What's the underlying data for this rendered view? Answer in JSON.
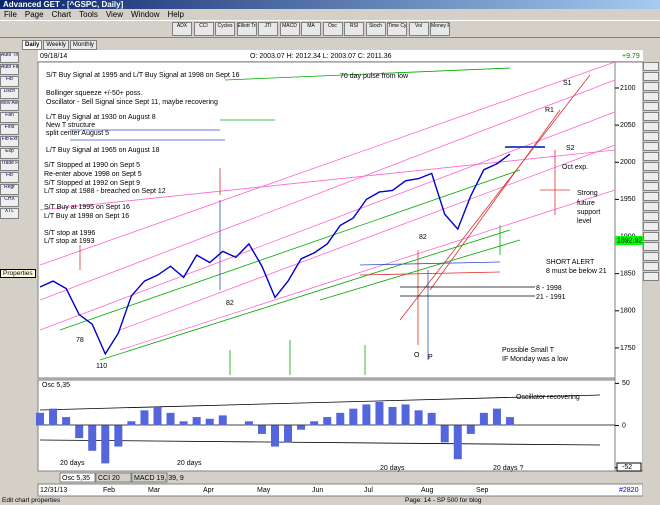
{
  "window": {
    "title": "Advanced GET - [^GSPC, Daily]",
    "menu": [
      "File",
      "Page",
      "Chart",
      "Tools",
      "View",
      "Window",
      "Help"
    ],
    "toolbar": [
      "ADX",
      "CCI",
      "Cycles",
      "Elliott Trig",
      "JTI",
      "MACD",
      "MA",
      "Osc",
      "RSI",
      "Stoch",
      "Time Cycles",
      "Vol",
      "Money Flow"
    ],
    "tabs": [
      "Daily",
      "Weekly",
      "Monthly"
    ],
    "left_tools": [
      "Auto Trend",
      "Auto Fib",
      "Fib",
      "Dsch",
      "Mov Ave",
      "Fan",
      "First",
      "Fib Ext",
      "Exp",
      "Trade Profile",
      "Fib",
      "Regr",
      "CHX",
      "XTL"
    ],
    "tooltip": "Properties"
  },
  "chart": {
    "date": "09/18/14",
    "ohlc": "O: 2003.07  H: 2012.34  L: 2003.07  C: 2011.36",
    "change": "+9.79",
    "ylim": [
      1709.5,
      2135
    ],
    "yticks": [
      2100,
      2050,
      2000,
      1950,
      1900,
      1850,
      1800,
      1750
    ],
    "current_price": "1892.92",
    "closes": [
      1832,
      1840,
      1830,
      1795,
      1782,
      1742,
      1770,
      1820,
      1840,
      1848,
      1860,
      1845,
      1875,
      1865,
      1880,
      1872,
      1890,
      1860,
      1818,
      1840,
      1870,
      1878,
      1890,
      1915,
      1925,
      1950,
      1960,
      1962,
      1975,
      1978,
      1985,
      1930,
      1910,
      1955,
      1990,
      1998,
      2011
    ],
    "annotations": [
      "S/T Buy Signal at 1995 and L/T Buy Signal at 1998 on Sept 16",
      "70 day pulse from low",
      "S1",
      "Bollinger squeeze +/-50+ poss.",
      "Oscillator - Sell Signal since Sept 11, maybe recovering",
      "R1",
      "L/T Buy Signal at 1930 on August 8",
      "New T structure",
      "split center August 5",
      "S2",
      "L/T Buy Signal at 1965 on August 18",
      "S/T Stopped at 1990 on Sept 5",
      "Oct exp.",
      "Re-enter above 1998 on Sept 5",
      "S/T Stopped at 1992 on Sept 9",
      "L/T stop at 1988 - breached on Sept 12",
      "Strong",
      "future",
      "support",
      "level",
      "S/T Buy at 1995 on Sept 16",
      "L/T Buy at 1998 on Sept 16",
      "S/T stop at 1996",
      "L/T stop at 1993",
      "82",
      "82",
      "78",
      "110",
      "SHORT ALERT",
      "8 must be below 21",
      "8  - 1998",
      "21 - 1991",
      "O",
      "P",
      "Possible Small T",
      "IF Monday was a low"
    ]
  },
  "oscillator": {
    "label": "Osc 5,35",
    "ylim": [
      -54,
      54
    ],
    "yticks": [
      50,
      0,
      -50
    ],
    "current": "-52",
    "values": [
      15,
      20,
      10,
      -15,
      -30,
      -45,
      -25,
      5,
      18,
      22,
      15,
      5,
      10,
      8,
      12,
      0,
      5,
      -10,
      -25,
      -20,
      -5,
      5,
      10,
      15,
      20,
      25,
      28,
      22,
      25,
      18,
      15,
      -20,
      -40,
      -10,
      15,
      20,
      10
    ],
    "annotations": [
      "Oscillator recovering",
      "20 days",
      "20 days",
      "20 days",
      "20 days ?"
    ],
    "tabs": [
      "Osc 5,35",
      "CCI 20",
      "MACD 19, 39, 9"
    ]
  },
  "date_axis": {
    "start": "12/31/13",
    "months": [
      "Feb",
      "Mar",
      "Apr",
      "May",
      "Jun",
      "Jul",
      "Aug",
      "Sep"
    ],
    "bar_number": "#2820"
  },
  "status": {
    "left": "Edit chart properties",
    "right": "Page: 14 - SP 500 for blog"
  }
}
